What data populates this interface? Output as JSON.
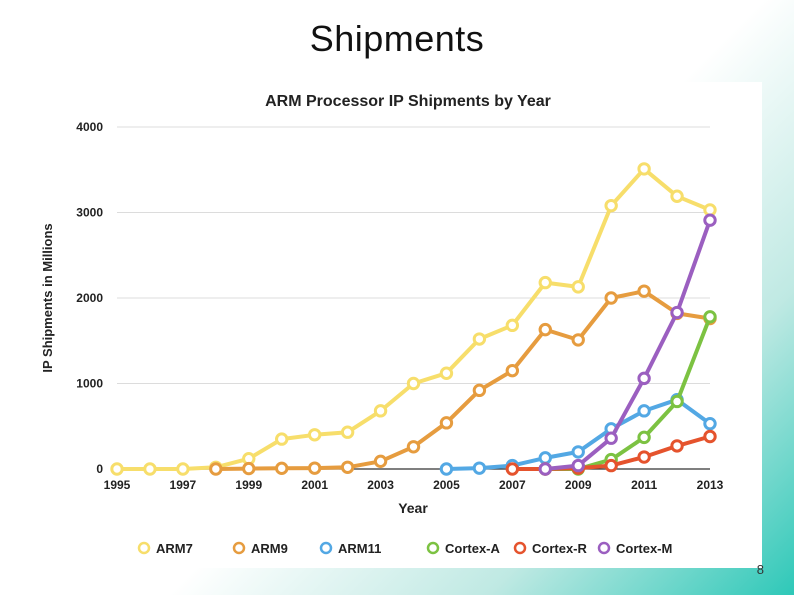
{
  "slide": {
    "title": "Shipments",
    "page_number": "8"
  },
  "chart_data": {
    "type": "line",
    "title": "ARM Processor IP Shipments by Year",
    "xlabel": "Year",
    "ylabel": "IP Shipments in Millions",
    "ylim": [
      0,
      4000
    ],
    "xlim": [
      1995,
      2013
    ],
    "yticks": [
      0,
      1000,
      2000,
      3000,
      4000
    ],
    "xticks": [
      1995,
      1997,
      1999,
      2001,
      2003,
      2005,
      2007,
      2009,
      2011,
      2013
    ],
    "grid": true,
    "legend_position": "bottom",
    "series": [
      {
        "name": "ARM7",
        "color": "#F7DE6B",
        "x": [
          1995,
          1996,
          1997,
          1998,
          1999,
          2000,
          2001,
          2002,
          2003,
          2004,
          2005,
          2006,
          2007,
          2008,
          2009,
          2010,
          2011,
          2012,
          2013
        ],
        "values": [
          0,
          0,
          0,
          20,
          120,
          350,
          400,
          430,
          680,
          1000,
          1120,
          1520,
          1680,
          2180,
          2130,
          3080,
          3510,
          3190,
          3030
        ]
      },
      {
        "name": "ARM9",
        "color": "#E69C3F",
        "x": [
          1998,
          1999,
          2000,
          2001,
          2002,
          2003,
          2004,
          2005,
          2006,
          2007,
          2008,
          2009,
          2010,
          2011,
          2012,
          2013
        ],
        "values": [
          0,
          5,
          8,
          10,
          20,
          90,
          260,
          540,
          920,
          1150,
          1630,
          1510,
          2000,
          2080,
          1820,
          1760
        ]
      },
      {
        "name": "ARM11",
        "color": "#53A8E4",
        "x": [
          2005,
          2006,
          2007,
          2008,
          2009,
          2010,
          2011,
          2012,
          2013
        ],
        "values": [
          0,
          10,
          40,
          130,
          200,
          470,
          680,
          810,
          530
        ]
      },
      {
        "name": "Cortex-A",
        "color": "#7CC242",
        "x": [
          2008,
          2009,
          2010,
          2011,
          2012,
          2013
        ],
        "values": [
          0,
          0,
          110,
          370,
          790,
          1780
        ]
      },
      {
        "name": "Cortex-R",
        "color": "#E5532D",
        "x": [
          2007,
          2008,
          2009,
          2010,
          2011,
          2012,
          2013
        ],
        "values": [
          0,
          0,
          10,
          40,
          140,
          270,
          380
        ]
      },
      {
        "name": "Cortex-M",
        "color": "#9B5FC0",
        "x": [
          2008,
          2009,
          2010,
          2011,
          2012,
          2013
        ],
        "values": [
          0,
          40,
          360,
          1060,
          1830,
          2910
        ]
      }
    ]
  }
}
